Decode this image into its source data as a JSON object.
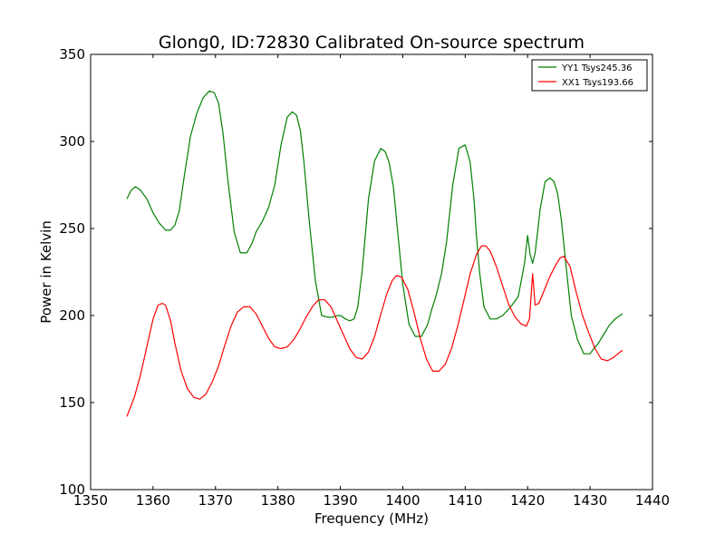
{
  "chart_data": {
    "type": "line",
    "title": "Glong0, ID:72830 Calibrated On-source spectrum",
    "xlabel": "Frequency (MHz)",
    "ylabel": "Power in Kelvin",
    "xlim": [
      1350,
      1440
    ],
    "ylim": [
      100,
      350
    ],
    "xticks": [
      1350,
      1360,
      1370,
      1380,
      1390,
      1400,
      1410,
      1420,
      1430,
      1440
    ],
    "yticks": [
      100,
      150,
      200,
      250,
      300,
      350
    ],
    "grid": false,
    "legend_position": "top-right",
    "series": [
      {
        "name": "YY1 Tsys245.36",
        "color": "#008000",
        "x": [
          1355.8,
          1356.5,
          1357.2,
          1358.0,
          1359.0,
          1360.0,
          1361.0,
          1362.0,
          1362.8,
          1363.5,
          1364.2,
          1365.0,
          1366.0,
          1367.0,
          1368.0,
          1369.0,
          1369.8,
          1370.5,
          1371.2,
          1372.0,
          1373.0,
          1374.0,
          1375.0,
          1375.8,
          1376.5,
          1377.5,
          1378.5,
          1379.5,
          1380.5,
          1381.5,
          1382.3,
          1383.0,
          1383.6,
          1384.2,
          1385.0,
          1386.0,
          1387.0,
          1388.0,
          1388.8,
          1389.5,
          1390.0,
          1390.8,
          1391.5,
          1392.2,
          1392.8,
          1393.5,
          1394.5,
          1395.5,
          1396.5,
          1397.2,
          1397.8,
          1398.5,
          1399.3,
          1400.0,
          1401.0,
          1402.0,
          1403.0,
          1404.0,
          1404.6,
          1405.3,
          1406.2,
          1407.0,
          1408.0,
          1409.0,
          1410.0,
          1410.8,
          1411.4,
          1411.8,
          1412.3,
          1413.0,
          1414.0,
          1415.0,
          1416.0,
          1416.8,
          1417.5,
          1418.5,
          1419.5,
          1420.0,
          1420.4,
          1420.8,
          1421.2,
          1421.6,
          1422.0,
          1422.8,
          1423.6,
          1424.2,
          1424.8,
          1425.4,
          1426.2,
          1427.0,
          1428.0,
          1429.0,
          1430.0,
          1430.6,
          1431.3,
          1432.0,
          1433.0,
          1434.0,
          1435.2
        ],
        "y": [
          267,
          272,
          274,
          272,
          267,
          259,
          253,
          249,
          249,
          252,
          260,
          280,
          303,
          316,
          325,
          329,
          328,
          322,
          305,
          277,
          248,
          236,
          236,
          241,
          248,
          254,
          262,
          275,
          298,
          314,
          317,
          315,
          306,
          287,
          255,
          220,
          200,
          199,
          199,
          200,
          200,
          198,
          197,
          198,
          205,
          226,
          267,
          289,
          296,
          294,
          288,
          274,
          244,
          218,
          195,
          188,
          188,
          195,
          203,
          211,
          224,
          242,
          275,
          296,
          298,
          288,
          267,
          246,
          225,
          205,
          198,
          198,
          200,
          203,
          206,
          211,
          230,
          246,
          235,
          230,
          236,
          248,
          261,
          277,
          279,
          277,
          270,
          255,
          227,
          200,
          186,
          178,
          178,
          181,
          184,
          188,
          194,
          198,
          201
        ]
      },
      {
        "name": "XX1 Tsys193.66",
        "color": "#ff0000",
        "x": [
          1355.8,
          1357.0,
          1358.0,
          1359.0,
          1360.0,
          1360.8,
          1361.5,
          1362.0,
          1362.8,
          1363.5,
          1364.5,
          1365.5,
          1366.5,
          1367.5,
          1368.5,
          1369.5,
          1370.5,
          1371.5,
          1372.5,
          1373.5,
          1374.5,
          1375.5,
          1376.5,
          1377.5,
          1378.5,
          1379.5,
          1380.5,
          1381.5,
          1382.5,
          1383.5,
          1384.5,
          1385.5,
          1386.5,
          1387.5,
          1388.5,
          1389.5,
          1390.5,
          1391.5,
          1392.5,
          1393.5,
          1394.5,
          1395.5,
          1396.5,
          1397.5,
          1398.3,
          1399.0,
          1399.8,
          1400.8,
          1401.8,
          1402.8,
          1403.8,
          1404.8,
          1405.8,
          1406.8,
          1407.8,
          1408.8,
          1409.8,
          1410.8,
          1411.8,
          1412.6,
          1413.3,
          1414.0,
          1415.0,
          1416.0,
          1417.0,
          1418.0,
          1419.0,
          1419.8,
          1420.3,
          1420.8,
          1421.2,
          1421.8,
          1422.5,
          1423.5,
          1424.5,
          1425.2,
          1425.8,
          1426.8,
          1427.8,
          1428.8,
          1429.8,
          1430.8,
          1431.8,
          1432.8,
          1433.8,
          1434.8,
          1435.2
        ],
        "y": [
          142,
          153,
          166,
          182,
          198,
          206,
          207,
          206,
          197,
          184,
          168,
          158,
          153,
          152,
          155,
          162,
          171,
          183,
          194,
          202,
          205,
          205,
          201,
          194,
          187,
          182,
          181,
          182,
          186,
          192,
          199,
          205,
          209,
          209,
          205,
          197,
          189,
          181,
          176,
          175,
          179,
          188,
          201,
          213,
          220,
          223,
          222,
          215,
          202,
          187,
          175,
          168,
          168,
          172,
          181,
          194,
          209,
          224,
          235,
          240,
          240,
          237,
          228,
          217,
          206,
          199,
          195,
          194,
          198,
          224,
          206,
          207,
          213,
          222,
          229,
          233,
          234,
          228,
          213,
          200,
          190,
          181,
          175,
          174,
          176,
          179,
          180
        ]
      }
    ]
  }
}
